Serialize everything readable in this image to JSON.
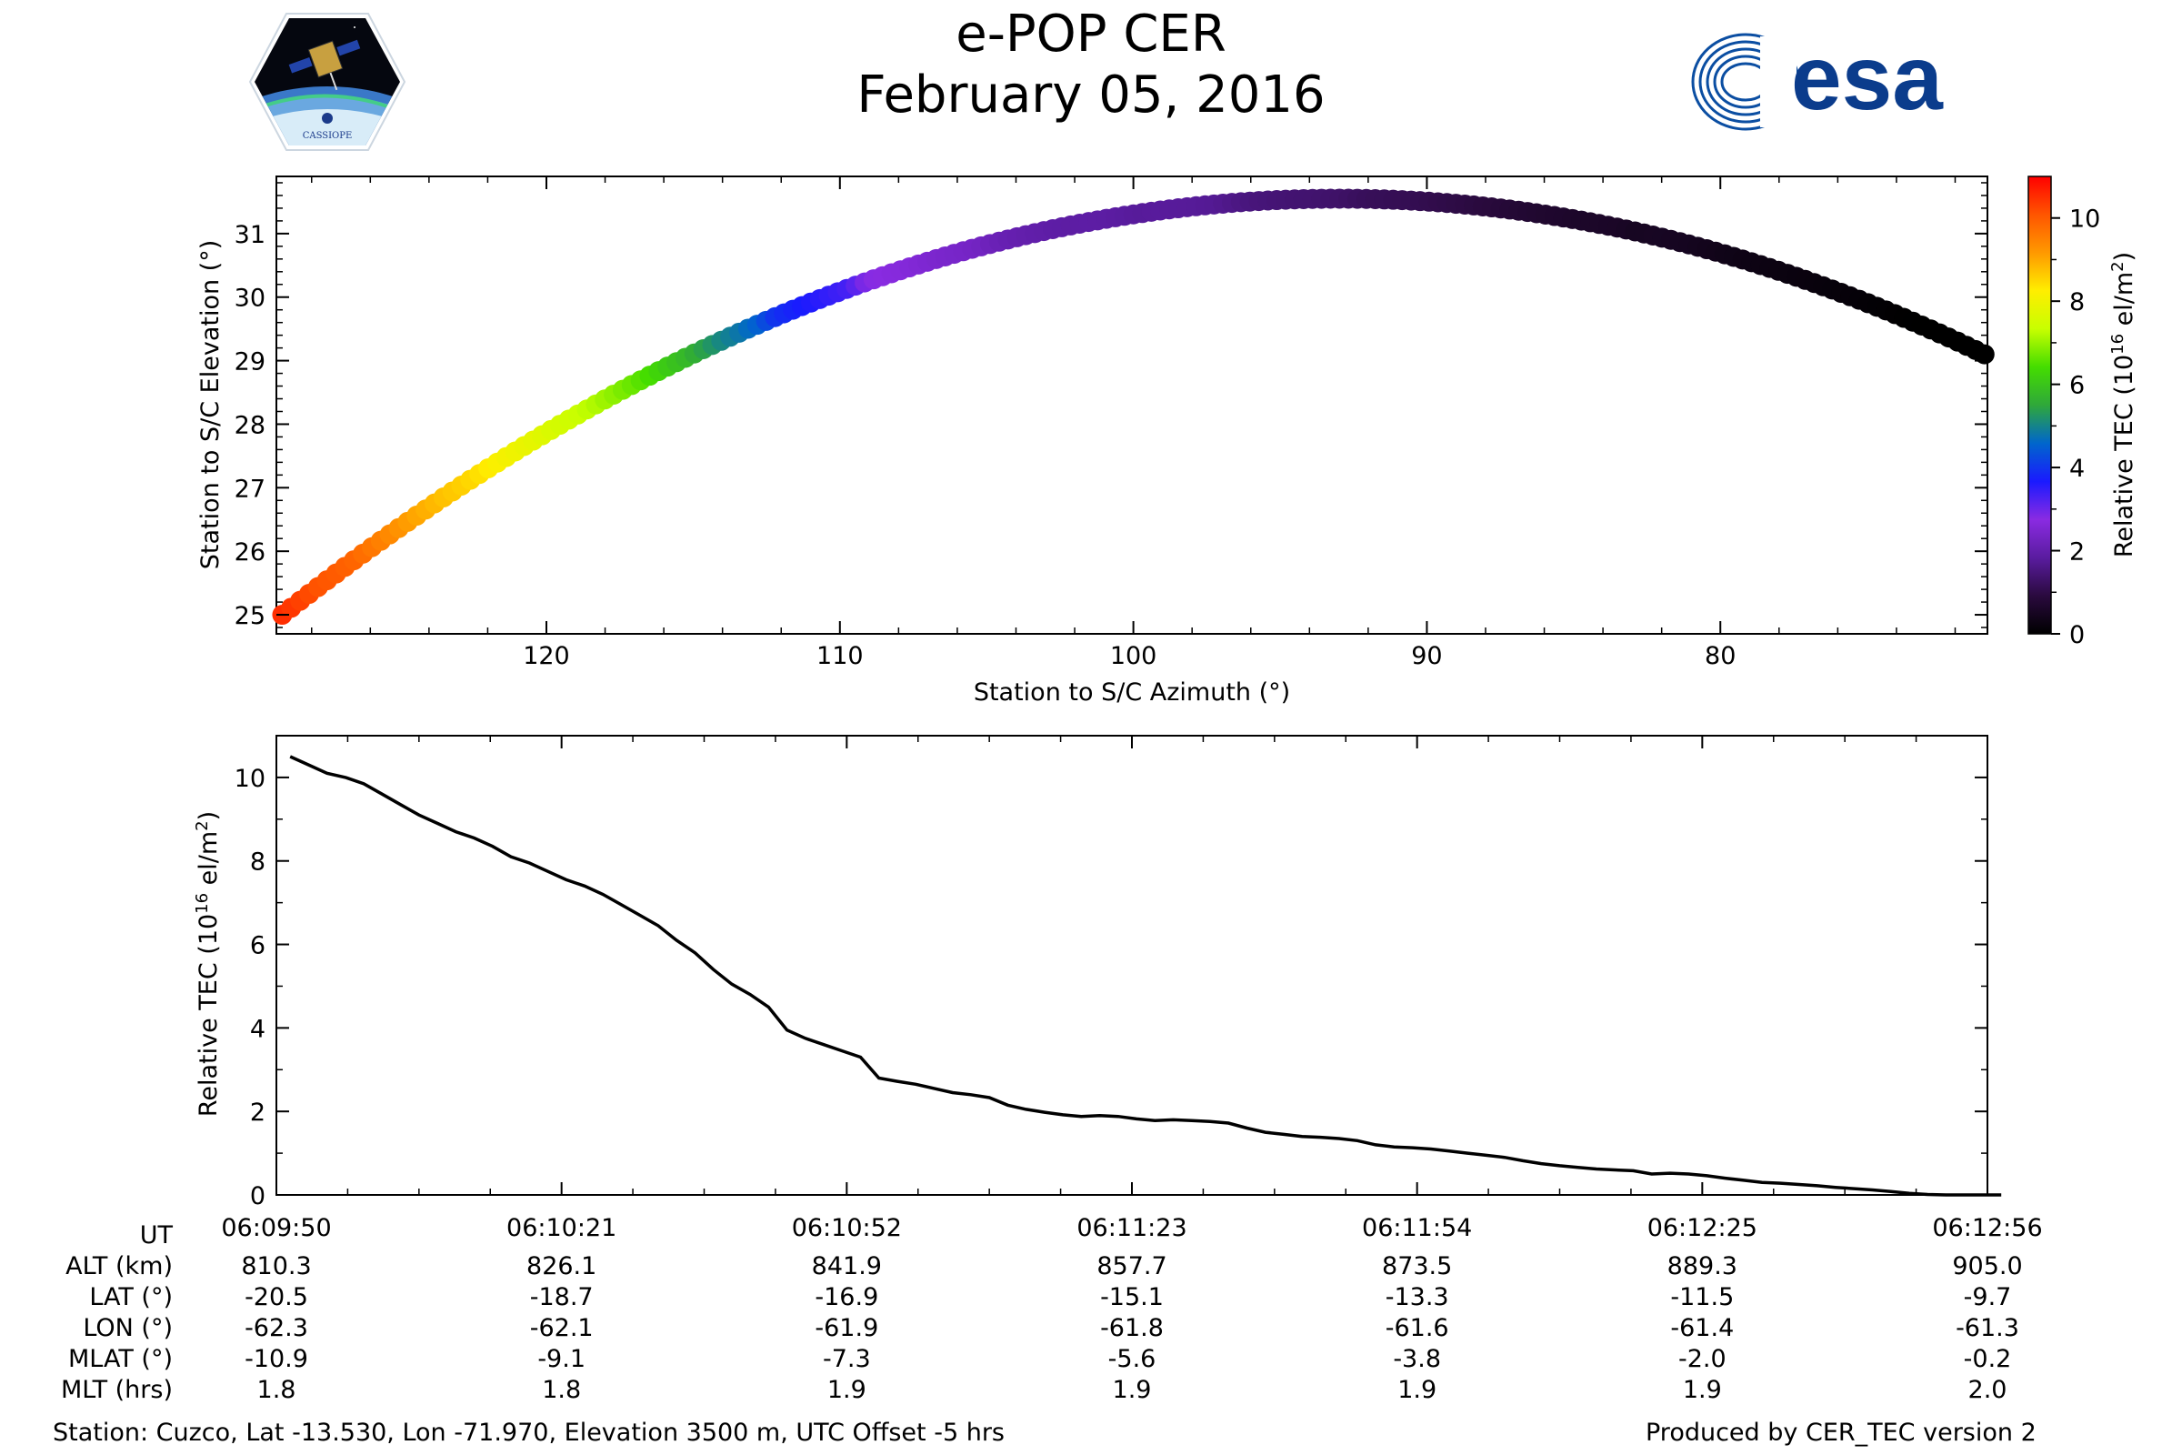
{
  "header": {
    "title": "e-POP CER",
    "date": "February 05, 2016",
    "logo_left": "CASSIOPE",
    "logo_right": "esa"
  },
  "chart_data": [
    {
      "type": "scatter",
      "xlabel": "Station to S/C Azimuth (°)",
      "ylabel": "Station to S/C Elevation (°)",
      "xlim": [
        129.2,
        70.9
      ],
      "ylim": [
        24.7,
        31.9
      ],
      "x_inverted": true,
      "xticks": [
        120,
        110,
        100,
        90,
        80
      ],
      "yticks": [
        25,
        26,
        27,
        28,
        29,
        30,
        31
      ],
      "color_by": "Relative TEC",
      "points_start": {
        "azimuth": 129.0,
        "elevation": 25.0
      },
      "points_peak": {
        "azimuth": 93.0,
        "elevation": 31.55
      },
      "points_end": {
        "azimuth": 71.0,
        "elevation": 29.1
      },
      "colorbar": {
        "label_main": "Relative TEC (10",
        "label_exp1": "16",
        "label_mid": " el/m",
        "label_exp2": "2",
        "label_end": ")",
        "range": [
          0,
          11
        ],
        "ticks": [
          0,
          2,
          4,
          6,
          8,
          10
        ],
        "colormap": "gnuplot2-like",
        "stops": [
          "#000000",
          "#2a0a3e",
          "#5a1ca0",
          "#8a2be2",
          "#1a1aff",
          "#0066cc",
          "#2fa83a",
          "#44dd00",
          "#c8ff00",
          "#ffee00",
          "#ff9900",
          "#ff5500",
          "#ff0000"
        ]
      }
    },
    {
      "type": "line",
      "xlabel": "",
      "ylabel_main": "Relative TEC (10",
      "ylabel_exp1": "16",
      "ylabel_mid": " el/m",
      "ylabel_exp2": "2",
      "ylabel_end": ")",
      "xlim": [
        0,
        186
      ],
      "ylim": [
        0,
        11
      ],
      "yticks": [
        0,
        2,
        4,
        6,
        8,
        10
      ],
      "series": [
        {
          "x": [
            0,
            2,
            4,
            6,
            8,
            10,
            12,
            14,
            16,
            18,
            20,
            22,
            24,
            26,
            28,
            30,
            32,
            34,
            36,
            38,
            40,
            42,
            44,
            46,
            48,
            50,
            52,
            54,
            56,
            58,
            60,
            62,
            64,
            66,
            68,
            70,
            72,
            74,
            76,
            78,
            80,
            82,
            84,
            86,
            88,
            90,
            92,
            94,
            96,
            98,
            100,
            102,
            104,
            106,
            108,
            110,
            112,
            114,
            116,
            118,
            120,
            122,
            124,
            126,
            128,
            130,
            132,
            134,
            136,
            138,
            140,
            142,
            144,
            146,
            148,
            150,
            152,
            154,
            156,
            158,
            160,
            162,
            164,
            166,
            168,
            170,
            172,
            174,
            176,
            178,
            180,
            182,
            184,
            186
          ],
          "values": [
            10.5,
            10.3,
            10.1,
            10.0,
            9.85,
            9.6,
            9.35,
            9.1,
            8.9,
            8.7,
            8.55,
            8.35,
            8.1,
            7.95,
            7.75,
            7.55,
            7.4,
            7.2,
            6.95,
            6.7,
            6.45,
            6.1,
            5.8,
            5.4,
            5.05,
            4.8,
            4.5,
            3.95,
            3.75,
            3.6,
            3.45,
            3.3,
            2.8,
            2.72,
            2.65,
            2.55,
            2.45,
            2.4,
            2.33,
            2.15,
            2.05,
            1.98,
            1.92,
            1.88,
            1.9,
            1.88,
            1.82,
            1.78,
            1.8,
            1.78,
            1.76,
            1.72,
            1.6,
            1.5,
            1.45,
            1.4,
            1.38,
            1.35,
            1.3,
            1.2,
            1.15,
            1.13,
            1.1,
            1.05,
            1.0,
            0.95,
            0.9,
            0.82,
            0.75,
            0.7,
            0.66,
            0.62,
            0.6,
            0.58,
            0.5,
            0.52,
            0.5,
            0.46,
            0.4,
            0.35,
            0.3,
            0.28,
            0.25,
            0.22,
            0.18,
            0.15,
            0.12,
            0.08,
            0.04,
            0.01,
            0.0,
            0.0,
            0.0,
            0.0
          ]
        }
      ]
    }
  ],
  "table": {
    "row_labels": [
      "UT",
      "ALT (km)",
      "LAT (°)",
      "LON (°)",
      "MLAT (°)",
      "MLT (hrs)"
    ],
    "columns": [
      [
        "06:09:50",
        "810.3",
        "-20.5",
        "-62.3",
        "-10.9",
        "1.8"
      ],
      [
        "06:10:21",
        "826.1",
        "-18.7",
        "-62.1",
        "-9.1",
        "1.8"
      ],
      [
        "06:10:52",
        "841.9",
        "-16.9",
        "-61.9",
        "-7.3",
        "1.9"
      ],
      [
        "06:11:23",
        "857.7",
        "-15.1",
        "-61.8",
        "-5.6",
        "1.9"
      ],
      [
        "06:11:54",
        "873.5",
        "-13.3",
        "-61.6",
        "-3.8",
        "1.9"
      ],
      [
        "06:12:25",
        "889.3",
        "-11.5",
        "-61.4",
        "-2.0",
        "1.9"
      ],
      [
        "06:12:56",
        "905.0",
        "-9.7",
        "-61.3",
        "-0.2",
        "2.0"
      ]
    ]
  },
  "footer": {
    "station": "Station: Cuzco, Lat -13.530, Lon -71.970, Elevation 3500 m, UTC Offset -5 hrs",
    "produced": "Produced by CER_TEC version 2"
  }
}
